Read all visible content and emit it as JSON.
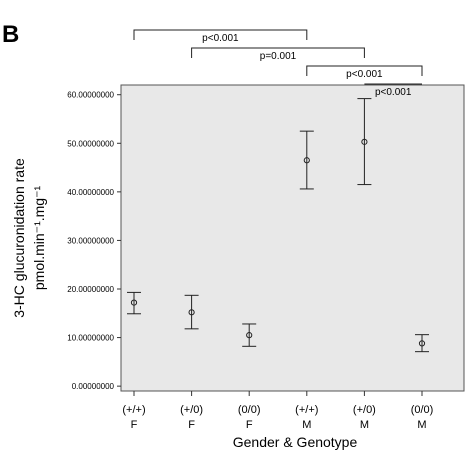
{
  "chart_data": {
    "type": "scatter",
    "panel_label": "B",
    "xlabel": "Gender & Genotype",
    "ylabel_line1": "3-HC glucuronidation rate",
    "ylabel_line2": "pmol.min⁻¹.mg⁻¹",
    "categories": [
      {
        "genotype": "(+/+)",
        "gender": "F"
      },
      {
        "genotype": "(+/0)",
        "gender": "F"
      },
      {
        "genotype": "(0/0)",
        "gender": "F"
      },
      {
        "genotype": "(+/+)",
        "gender": "M"
      },
      {
        "genotype": "(+/0)",
        "gender": "M"
      },
      {
        "genotype": "(0/0)",
        "gender": "M"
      }
    ],
    "means": [
      17.2,
      15.2,
      10.5,
      46.5,
      50.3,
      8.8
    ],
    "error_low": [
      14.9,
      11.8,
      8.2,
      40.6,
      41.5,
      7.1
    ],
    "error_high": [
      19.3,
      18.7,
      12.8,
      52.5,
      59.2,
      10.6
    ],
    "ylim": [
      -1,
      62
    ],
    "yticks": [
      0,
      10,
      20,
      30,
      40,
      50,
      60
    ],
    "ytick_labels": [
      "0.00000000",
      "10.00000000",
      "20.00000000",
      "30.00000000",
      "40.00000000",
      "50.00000000",
      "60.00000000"
    ],
    "plot_background": "#e8e8e8",
    "grid": false,
    "significance": [
      {
        "from": 0,
        "to": 3,
        "label": "p<0.001"
      },
      {
        "from": 1,
        "to": 4,
        "label": "p=0.001"
      },
      {
        "from": 3,
        "to": 5,
        "label": "p<0.001"
      },
      {
        "from": 4,
        "to": 5,
        "label": "p<0.001"
      }
    ]
  }
}
